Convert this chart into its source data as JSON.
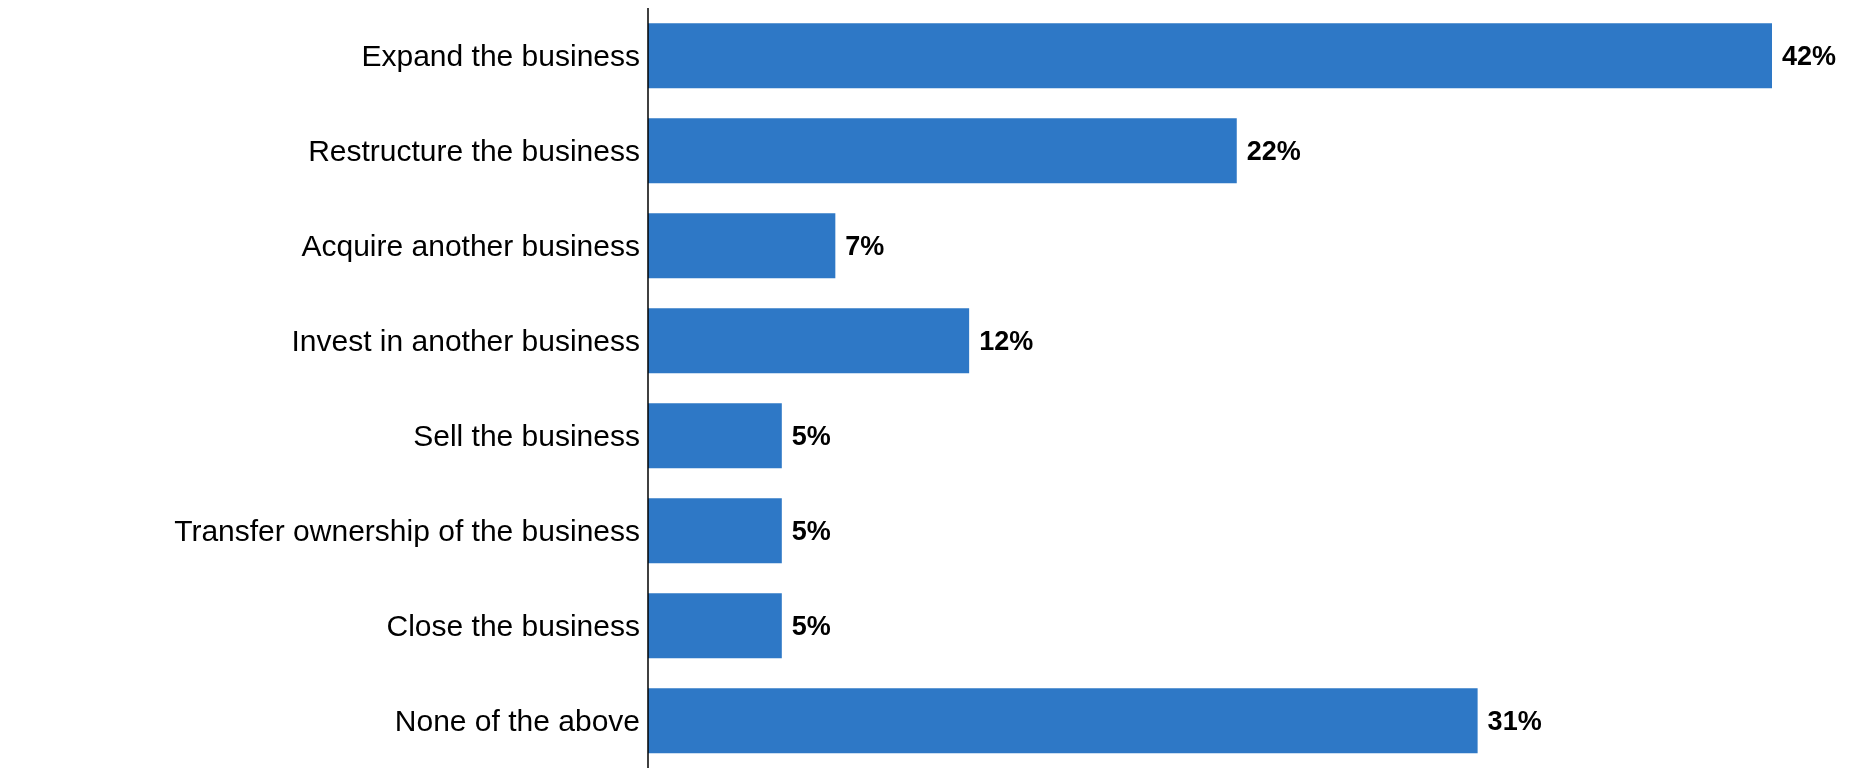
{
  "chart_data": {
    "type": "bar",
    "orientation": "horizontal",
    "categories": [
      "Expand the business",
      "Restructure the business",
      "Acquire another business",
      "Invest in another business",
      "Sell the business",
      "Transfer ownership of the business",
      "Close the business",
      "None of the above"
    ],
    "values": [
      42,
      22,
      7,
      12,
      5,
      5,
      5,
      31
    ],
    "value_labels": [
      "42%",
      "22%",
      "7%",
      "12%",
      "5%",
      "5%",
      "5%",
      "31%"
    ],
    "color": "#2e78c6",
    "grid": false,
    "legend": false,
    "tick_labels": "y"
  }
}
